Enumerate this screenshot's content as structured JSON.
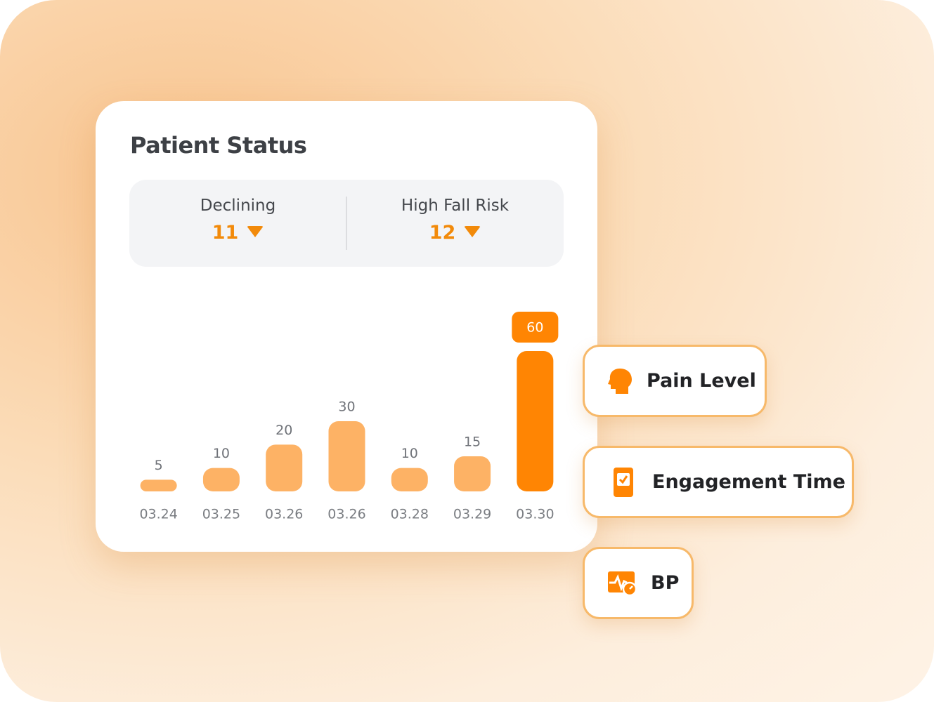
{
  "title": "Patient Status",
  "stats": [
    {
      "label": "Declining",
      "value": 11
    },
    {
      "label": "High Fall Risk",
      "value": 12
    }
  ],
  "chart_data": {
    "type": "bar",
    "categories": [
      "03.24",
      "03.25",
      "03.26",
      "03.26",
      "03.28",
      "03.29",
      "03.30"
    ],
    "values": [
      5,
      10,
      20,
      30,
      10,
      15,
      60
    ],
    "colors": [
      "#fdb265",
      "#fdb265",
      "#fdb265",
      "#fdb265",
      "#fdb265",
      "#fdb265",
      "#ff8503"
    ]
  },
  "buttons": [
    {
      "label": "Pain Level"
    },
    {
      "label": "Engagement Time"
    },
    {
      "label": "BP"
    }
  ]
}
